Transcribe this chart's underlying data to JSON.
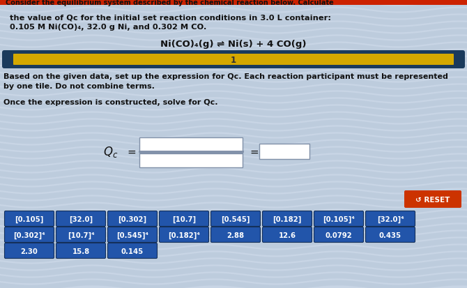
{
  "bg_color": "#c8d5e5",
  "stripe_color": "#b5c5d8",
  "top_bar_color": "#cc2200",
  "top_text1": "the value of Qc for the initial set reaction conditions in 3.0 L container:",
  "top_text2": "0.105 M Ni(CO)₄, 32.0 g Ni, and 0.302 M CO.",
  "reaction": "Ni(CO)₄(g) ⇌ Ni(s) + 4 CO(g)",
  "progress_bar_bg": "#1a3a5c",
  "progress_bar_fill": "#d4a800",
  "progress_bar_text": "1",
  "instruction1": "Based on the given data, set up the expression for Qc. Each reaction participant must be represented",
  "instruction2": "by one tile. Do not combine terms.",
  "instruction3": "Once the expression is constructed, solve for Qc.",
  "reset_color": "#cc3300",
  "reset_text": "↺ RESET",
  "tile_bg": "#2255aa",
  "tile_text_color": "#ffffff",
  "tiles_row1": [
    "[0.105]",
    "[32.0]",
    "[0.302]",
    "[10.7]",
    "[0.545]",
    "[0.182]",
    "[0.105]⁴",
    "[32.0]⁴"
  ],
  "tiles_row2": [
    "[0.302]⁴",
    "[10.7]⁴",
    "[0.545]⁴",
    "[0.182]⁴",
    "2.88",
    "12.6",
    "0.0792",
    "0.435"
  ],
  "tiles_row3": [
    "2.30",
    "15.8",
    "0.145"
  ],
  "box_border": "#8090a8",
  "scroll_text": "Consider the equilibrium system described by the chemical reaction below. Calculate"
}
